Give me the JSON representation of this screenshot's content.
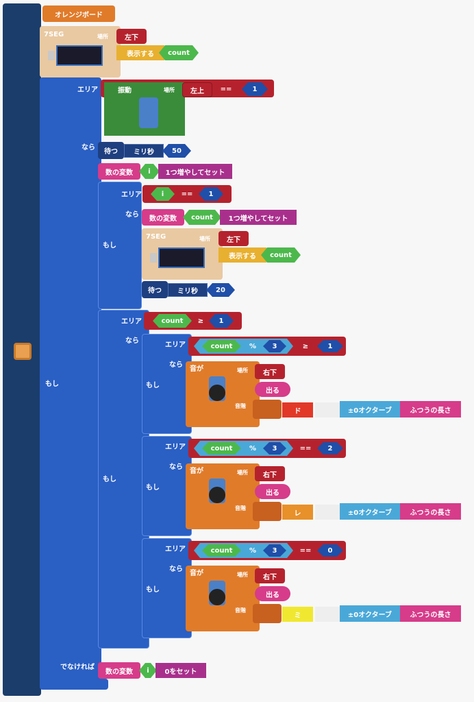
{
  "board": "オレンジボード",
  "seg_display": {
    "title": "7SEG",
    "place_label": "場所",
    "place": "左下",
    "action": "表示する",
    "variable": "count"
  },
  "main_if": {
    "label": "もし",
    "area": "エリア",
    "then": "なら",
    "else": "でなければ",
    "condition": {
      "sensor": "振動",
      "place_label": "場所",
      "place": "左上",
      "operator": "==",
      "value": 1
    },
    "wait": {
      "label": "待つ",
      "unit": "ミリ秒",
      "value": 50
    },
    "increment": {
      "label": "数の変数",
      "variable": "i",
      "action": "1つ増やしてセット"
    },
    "if_i": {
      "label": "もし",
      "area": "エリア",
      "then": "なら",
      "condition": {
        "variable": "i",
        "operator": "==",
        "value": 1
      },
      "increment": {
        "label": "数の変数",
        "variable": "count",
        "action": "1つ増やしてセット"
      },
      "seg_display": {
        "title": "7SEG",
        "place_label": "場所",
        "place": "左下",
        "action": "表示する",
        "variable": "count"
      },
      "wait": {
        "label": "待つ",
        "unit": "ミリ秒",
        "value": 20
      }
    },
    "if_count": {
      "label": "もし",
      "area": "エリア",
      "then": "なら",
      "condition": {
        "variable": "count",
        "operator": "≥",
        "value": 1
      },
      "branches": [
        {
          "label": "もし",
          "area": "エリア",
          "then": "なら",
          "condition": {
            "variable": "count",
            "modulo": "%",
            "divisor": 3,
            "operator": "≥",
            "value": 1
          },
          "sound": {
            "label": "音が",
            "place_label": "場所",
            "place": "右下",
            "action": "出る",
            "scale_label": "音階",
            "note": "ド",
            "octave": "±0オクターブ",
            "length": "ふつうの長さ"
          }
        },
        {
          "label": "もし",
          "area": "エリア",
          "then": "なら",
          "condition": {
            "variable": "count",
            "modulo": "%",
            "divisor": 3,
            "operator": "==",
            "value": 2
          },
          "sound": {
            "label": "音が",
            "place_label": "場所",
            "place": "右下",
            "action": "出る",
            "scale_label": "音階",
            "note": "レ",
            "octave": "±0オクターブ",
            "length": "ふつうの長さ"
          }
        },
        {
          "label": "もし",
          "area": "エリア",
          "then": "なら",
          "condition": {
            "variable": "count",
            "modulo": "%",
            "divisor": 3,
            "operator": "==",
            "value": 0
          },
          "sound": {
            "label": "音が",
            "place_label": "場所",
            "place": "右下",
            "action": "出る",
            "scale_label": "音階",
            "note": "ミ",
            "octave": "±0オクターブ",
            "length": "ふつうの長さ"
          }
        }
      ]
    },
    "else_set": {
      "label": "数の変数",
      "variable": "i",
      "action": "0をセット"
    }
  }
}
